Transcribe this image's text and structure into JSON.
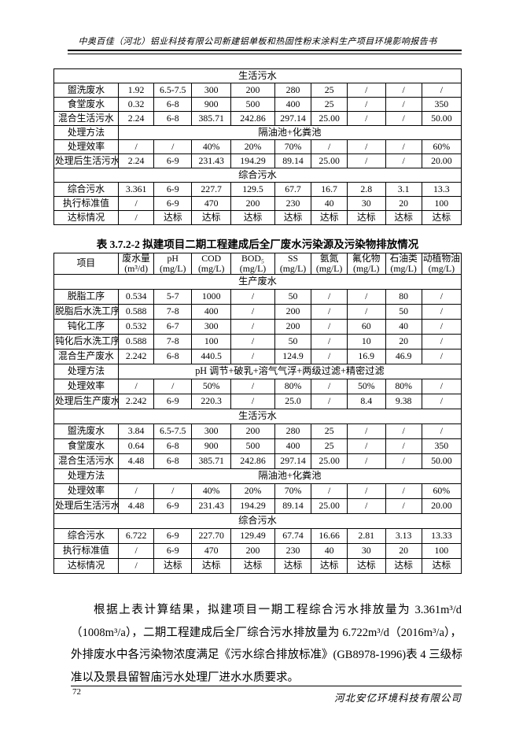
{
  "header": {
    "title": "中奥百佳（河北）铝业科技有限公司新建铝单板和热固性粉末涂料生产项目环境影响报告书"
  },
  "table1": {
    "rows": [
      {
        "type": "span",
        "label": "生活污水"
      },
      {
        "type": "data",
        "cells": [
          "盥洗废水",
          "1.92",
          "6.5-7.5",
          "300",
          "200",
          "280",
          "25",
          "/",
          "/",
          "/"
        ]
      },
      {
        "type": "data",
        "cells": [
          "食堂废水",
          "0.32",
          "6-8",
          "900",
          "500",
          "400",
          "25",
          "/",
          "/",
          "350"
        ]
      },
      {
        "type": "data",
        "cells": [
          "混合生活污水",
          "2.24",
          "6-8",
          "385.71",
          "242.86",
          "297.14",
          "25.00",
          "/",
          "/",
          "50.00"
        ]
      },
      {
        "type": "method",
        "label": "处理方法",
        "value": "隔油池+化粪池"
      },
      {
        "type": "data",
        "cells": [
          "处理效率",
          "/",
          "/",
          "40%",
          "20%",
          "70%",
          "/",
          "/",
          "/",
          "60%"
        ]
      },
      {
        "type": "data",
        "cells": [
          "处理后生活污水",
          "2.24",
          "6-9",
          "231.43",
          "194.29",
          "89.14",
          "25.00",
          "/",
          "/",
          "20.00"
        ]
      },
      {
        "type": "span",
        "label": "综合污水"
      },
      {
        "type": "data",
        "cells": [
          "综合污水",
          "3.361",
          "6-9",
          "227.7",
          "129.5",
          "67.7",
          "16.7",
          "2.8",
          "3.1",
          "13.3"
        ]
      },
      {
        "type": "data",
        "cells": [
          "执行标准值",
          "/",
          "6-9",
          "470",
          "200",
          "230",
          "40",
          "30",
          "20",
          "100"
        ]
      },
      {
        "type": "data",
        "cells": [
          "达标情况",
          "/",
          "达标",
          "达标",
          "达标",
          "达标",
          "达标",
          "达标",
          "达标",
          "达标"
        ]
      }
    ]
  },
  "table2_caption": "表 3.7.2-2  拟建项目二期工程建成后全厂废水污染源及污染物排放情况",
  "table2": {
    "header": [
      {
        "name": "项目",
        "unit": ""
      },
      {
        "name": "废水量",
        "unit": "(m³/d)"
      },
      {
        "name": "pH",
        "unit": "(mg/L)"
      },
      {
        "name": "COD",
        "unit": "(mg/L)"
      },
      {
        "name": "BOD₅",
        "unit": "(mg/L)"
      },
      {
        "name": "SS",
        "unit": "(mg/L)"
      },
      {
        "name": "氨氮",
        "unit": "(mg/L)"
      },
      {
        "name": "氟化物",
        "unit": "(mg/L)"
      },
      {
        "name": "石油类",
        "unit": "(mg/L)"
      },
      {
        "name": "动植物油",
        "unit": "(mg/L)"
      }
    ],
    "rows": [
      {
        "type": "span",
        "label": "生产废水"
      },
      {
        "type": "data",
        "cells": [
          "脱脂工序",
          "0.534",
          "5-7",
          "1000",
          "/",
          "50",
          "/",
          "/",
          "80",
          "/"
        ]
      },
      {
        "type": "data",
        "cells": [
          "脱脂后水洗工序",
          "0.588",
          "7-8",
          "400",
          "/",
          "200",
          "/",
          "/",
          "50",
          "/"
        ]
      },
      {
        "type": "data",
        "cells": [
          "钝化工序",
          "0.532",
          "6-7",
          "300",
          "/",
          "200",
          "/",
          "60",
          "40",
          "/"
        ]
      },
      {
        "type": "data",
        "cells": [
          "钝化后水洗工序",
          "0.588",
          "7-8",
          "100",
          "/",
          "50",
          "/",
          "10",
          "20",
          "/"
        ]
      },
      {
        "type": "data",
        "cells": [
          "混合生产废水",
          "2.242",
          "6-8",
          "440.5",
          "/",
          "124.9",
          "/",
          "16.9",
          "46.9",
          "/"
        ]
      },
      {
        "type": "method",
        "label": "处理方法",
        "value": "pH 调节+破乳+溶气气浮+两级过滤+精密过滤"
      },
      {
        "type": "data",
        "cells": [
          "处理效率",
          "/",
          "/",
          "50%",
          "/",
          "80%",
          "/",
          "50%",
          "80%",
          "/"
        ]
      },
      {
        "type": "data",
        "cells": [
          "处理后生产废水",
          "2.242",
          "6-9",
          "220.3",
          "/",
          "25.0",
          "/",
          "8.4",
          "9.38",
          "/"
        ]
      },
      {
        "type": "span",
        "label": "生活污水"
      },
      {
        "type": "data",
        "cells": [
          "盥洗废水",
          "3.84",
          "6.5-7.5",
          "300",
          "200",
          "280",
          "25",
          "/",
          "/",
          "/"
        ]
      },
      {
        "type": "data",
        "cells": [
          "食堂废水",
          "0.64",
          "6-8",
          "900",
          "500",
          "400",
          "25",
          "/",
          "/",
          "350"
        ]
      },
      {
        "type": "data",
        "cells": [
          "混合生活污水",
          "4.48",
          "6-8",
          "385.71",
          "242.86",
          "297.14",
          "25.00",
          "/",
          "/",
          "50.00"
        ]
      },
      {
        "type": "method",
        "label": "处理方法",
        "value": "隔油池+化粪池"
      },
      {
        "type": "data",
        "cells": [
          "处理效率",
          "/",
          "/",
          "40%",
          "20%",
          "70%",
          "/",
          "/",
          "/",
          "60%"
        ]
      },
      {
        "type": "data",
        "cells": [
          "处理后生活污水",
          "4.48",
          "6-9",
          "231.43",
          "194.29",
          "89.14",
          "25.00",
          "/",
          "/",
          "20.00"
        ]
      },
      {
        "type": "span",
        "label": "综合污水"
      },
      {
        "type": "data",
        "cells": [
          "综合污水",
          "6.722",
          "6-9",
          "227.70",
          "129.49",
          "67.74",
          "16.66",
          "2.81",
          "3.13",
          "13.33"
        ]
      },
      {
        "type": "data",
        "cells": [
          "执行标准值",
          "/",
          "6-9",
          "470",
          "200",
          "230",
          "40",
          "30",
          "20",
          "100"
        ]
      },
      {
        "type": "data",
        "cells": [
          "达标情况",
          "/",
          "达标",
          "达标",
          "达标",
          "达标",
          "达标",
          "达标",
          "达标",
          "达标"
        ]
      }
    ]
  },
  "paragraph": {
    "lines": [
      "根据上表计算结果，拟建项目一期工程综合污水排放量为 3.361m³/d",
      "（1008m³/a），二期工程建成后全厂综合污水排放量为 6.722m³/d（2016m³/a），",
      "外排废水中各污染物浓度满足《污水综合排放标准》(GB8978-1996)表 4 三级标",
      "准以及景县留智庙污水处理厂进水水质要求。"
    ]
  },
  "footer": {
    "page_number": "72",
    "company": "河北安亿环境科技有限公司"
  }
}
